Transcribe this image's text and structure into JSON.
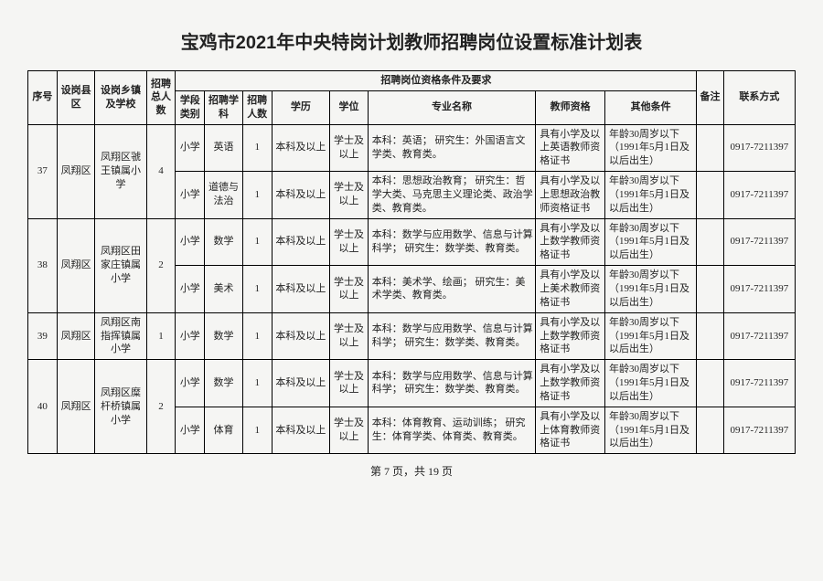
{
  "title": "宝鸡市2021年中央特岗计划教师招聘岗位设置标准计划表",
  "footer": "第 7 页，共 19 页",
  "headers": {
    "seq": "序号",
    "county": "设岗县区",
    "school": "设岗乡镇及学校",
    "total": "招聘总人数",
    "req_group": "招聘岗位资格条件及要求",
    "level": "学段类别",
    "subject": "招聘学科",
    "count": "招聘人数",
    "edu": "学历",
    "degree": "学位",
    "major": "专业名称",
    "qual": "教师资格",
    "other": "其他条件",
    "remark": "备注",
    "contact": "联系方式"
  },
  "rows": [
    {
      "seq": "37",
      "county": "凤翔区",
      "school": "凤翔区虢王镇属小学",
      "total": "4",
      "sr": 2,
      "posts": [
        {
          "level": "小学",
          "subject": "英语",
          "count": "1",
          "edu": "本科及以上",
          "degree": "学士及以上",
          "major": "本科：英语；\n研究生：外国语言文学类、教育类。",
          "qual": "具有小学及以上英语教师资格证书",
          "other": "年龄30周岁以下（1991年5月1日及以后出生）",
          "remark": "",
          "contact": "0917-7211397"
        },
        {
          "level": "小学",
          "subject": "道德与法治",
          "count": "1",
          "edu": "本科及以上",
          "degree": "学士及以上",
          "major": "本科：思想政治教育；\n研究生：哲学大类、马克思主义理论类、政治学类、教育类。",
          "qual": "具有小学及以上思想政治教师资格证书",
          "other": "年龄30周岁以下（1991年5月1日及以后出生）",
          "remark": "",
          "contact": "0917-7211397"
        }
      ]
    },
    {
      "seq": "38",
      "county": "凤翔区",
      "school": "凤翔区田家庄镇属小学",
      "total": "2",
      "sr": 2,
      "posts": [
        {
          "level": "小学",
          "subject": "数学",
          "count": "1",
          "edu": "本科及以上",
          "degree": "学士及以上",
          "major": "本科：数学与应用数学、信息与计算科学；\n研究生：数学类、教育类。",
          "qual": "具有小学及以上数学教师资格证书",
          "other": "年龄30周岁以下（1991年5月1日及以后出生）",
          "remark": "",
          "contact": "0917-7211397"
        },
        {
          "level": "小学",
          "subject": "美术",
          "count": "1",
          "edu": "本科及以上",
          "degree": "学士及以上",
          "major": "本科：美术学、绘画；\n研究生：美术学类、教育类。",
          "qual": "具有小学及以上美术教师资格证书",
          "other": "年龄30周岁以下（1991年5月1日及以后出生）",
          "remark": "",
          "contact": "0917-7211397"
        }
      ]
    },
    {
      "seq": "39",
      "county": "凤翔区",
      "school": "凤翔区南指挥镇属小学",
      "total": "1",
      "sr": 1,
      "posts": [
        {
          "level": "小学",
          "subject": "数学",
          "count": "1",
          "edu": "本科及以上",
          "degree": "学士及以上",
          "major": "本科：数学与应用数学、信息与计算科学；\n研究生：数学类、教育类。",
          "qual": "具有小学及以上数学教师资格证书",
          "other": "年龄30周岁以下（1991年5月1日及以后出生）",
          "remark": "",
          "contact": "0917-7211397"
        }
      ]
    },
    {
      "seq": "40",
      "county": "凤翔区",
      "school": "凤翔区糜杆桥镇属小学",
      "total": "2",
      "sr": 2,
      "posts": [
        {
          "level": "小学",
          "subject": "数学",
          "count": "1",
          "edu": "本科及以上",
          "degree": "学士及以上",
          "major": "本科：数学与应用数学、信息与计算科学；\n研究生：数学类、教育类。",
          "qual": "具有小学及以上数学教师资格证书",
          "other": "年龄30周岁以下（1991年5月1日及以后出生）",
          "remark": "",
          "contact": "0917-7211397"
        },
        {
          "level": "小学",
          "subject": "体育",
          "count": "1",
          "edu": "本科及以上",
          "degree": "学士及以上",
          "major": "本科：体育教育、运动训练；\n研究生：体育学类、体育类、教育类。",
          "qual": "具有小学及以上体育教师资格证书",
          "other": "年龄30周岁以下（1991年5月1日及以后出生）",
          "remark": "",
          "contact": "0917-7211397"
        }
      ]
    }
  ],
  "colwidths": [
    "26",
    "34",
    "46",
    "26",
    "26",
    "34",
    "26",
    "52",
    "34",
    "150",
    "62",
    "82",
    "24",
    "64"
  ]
}
